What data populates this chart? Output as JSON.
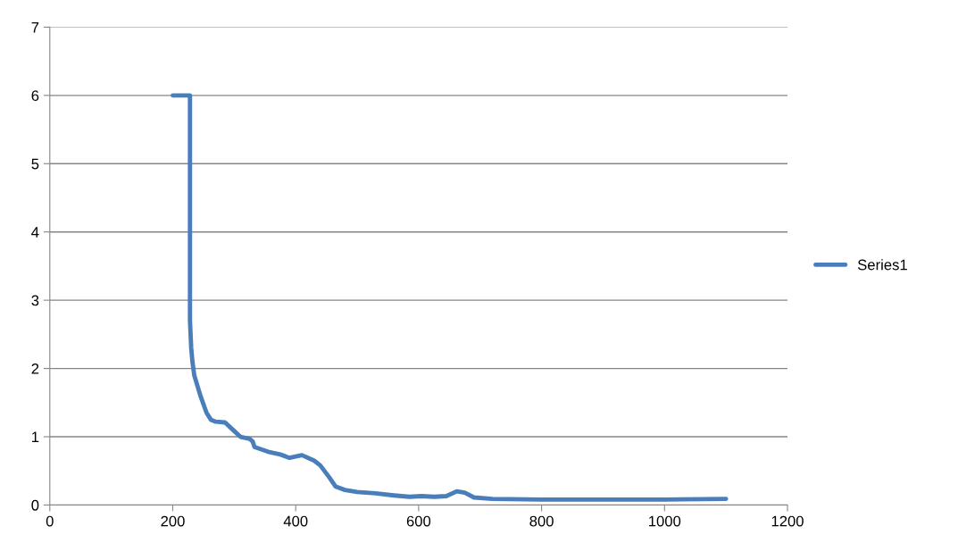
{
  "chart_data": {
    "type": "line",
    "xlim": [
      0,
      1200
    ],
    "xticks": [
      0,
      200,
      400,
      600,
      800,
      1000,
      1200
    ],
    "ylim": [
      0,
      7
    ],
    "yticks": [
      0,
      1,
      2,
      3,
      4,
      5,
      6,
      7
    ],
    "grid": "y",
    "legend": "right",
    "marker": "none",
    "line_style": "solid",
    "series": [
      {
        "name": "Series1",
        "color": "#4a7ebb",
        "x": [
          200,
          228,
          228,
          230,
          232,
          235,
          245,
          255,
          262,
          270,
          285,
          298,
          310,
          325,
          330,
          333,
          355,
          375,
          390,
          400,
          410,
          430,
          440,
          455,
          465,
          480,
          500,
          530,
          560,
          585,
          605,
          625,
          645,
          662,
          675,
          690,
          720,
          800,
          1000,
          1100
        ],
        "values": [
          6,
          6,
          2.7,
          2.3,
          2.1,
          1.9,
          1.6,
          1.35,
          1.25,
          1.22,
          1.21,
          1.1,
          1.0,
          0.97,
          0.93,
          0.85,
          0.78,
          0.74,
          0.69,
          0.71,
          0.73,
          0.65,
          0.58,
          0.4,
          0.27,
          0.22,
          0.19,
          0.17,
          0.14,
          0.12,
          0.13,
          0.12,
          0.13,
          0.2,
          0.18,
          0.11,
          0.09,
          0.08,
          0.08,
          0.09
        ]
      }
    ]
  }
}
